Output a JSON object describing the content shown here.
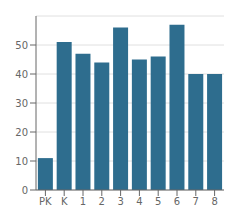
{
  "chart_data": {
    "type": "bar",
    "categories": [
      "PK",
      "K",
      "1",
      "2",
      "3",
      "4",
      "5",
      "6",
      "7",
      "8"
    ],
    "values": [
      11,
      51,
      47,
      44,
      56,
      45,
      46,
      57,
      40,
      40
    ],
    "color": "#2e6d8e",
    "ylim": [
      0,
      60
    ],
    "yticks": [
      0,
      10,
      20,
      30,
      40,
      50
    ],
    "grid": true
  }
}
